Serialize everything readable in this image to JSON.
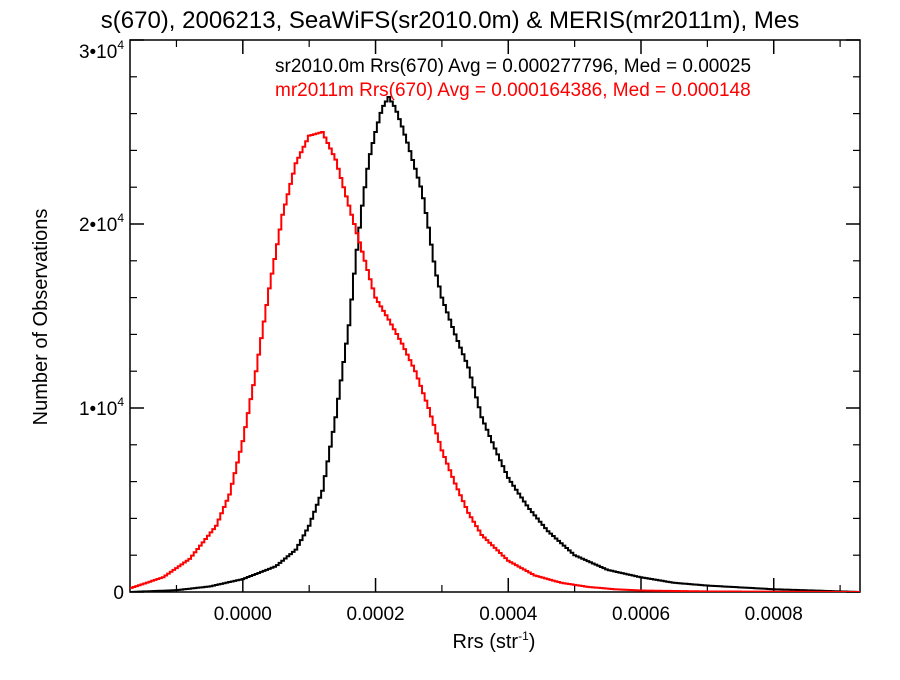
{
  "chart_data": {
    "type": "line",
    "title": "s(670), 2006213, SeaWiFS(sr2010.0m) & MERIS(mr2011m), Mes",
    "xlabel": "Rrs (str",
    "xlabel_sup": "-1",
    "xlabel_end": ")",
    "ylabel": "Number of Observations",
    "xlim": [
      -0.00017,
      0.00093
    ],
    "ylim": [
      0,
      30000
    ],
    "x_ticks": [
      {
        "value": 0.0,
        "label": "0.0000"
      },
      {
        "value": 0.0002,
        "label": "0.0002"
      },
      {
        "value": 0.0004,
        "label": "0.0004"
      },
      {
        "value": 0.0006,
        "label": "0.0006"
      },
      {
        "value": 0.0008,
        "label": "0.0008"
      }
    ],
    "y_ticks": [
      {
        "value": 0,
        "label": "0",
        "sup": ""
      },
      {
        "value": 10000,
        "label": "1•10",
        "sup": "4"
      },
      {
        "value": 20000,
        "label": "2•10",
        "sup": "4"
      },
      {
        "value": 30000,
        "label": "3•10",
        "sup": "4"
      }
    ],
    "annotations": [
      {
        "text": "sr2010.0m Rrs(670) Avg = 0.000277796, Med = 0.00025",
        "color": "#000000"
      },
      {
        "text": "mr2011m Rrs(670) Avg = 0.000164386, Med = 0.000148",
        "color": "#ff0000"
      }
    ],
    "series": [
      {
        "color": "#000000",
        "x": [
          -0.00017,
          -0.0001,
          -5e-05,
          0.0,
          5e-05,
          8e-05,
          0.0001,
          0.00012,
          0.00014,
          0.00016,
          0.00017,
          0.00018,
          0.00019,
          0.0002,
          0.00021,
          0.00022,
          0.00023,
          0.00024,
          0.00025,
          0.00026,
          0.00027,
          0.00028,
          0.00029,
          0.0003,
          0.00032,
          0.00034,
          0.00036,
          0.00038,
          0.0004,
          0.00043,
          0.00046,
          0.0005,
          0.00055,
          0.0006,
          0.00065,
          0.0007,
          0.0008,
          0.00093
        ],
        "y": [
          0,
          100,
          300,
          700,
          1400,
          2300,
          3600,
          5500,
          9500,
          14500,
          18000,
          21000,
          23500,
          25000,
          26300,
          26900,
          26300,
          25300,
          24200,
          23000,
          21800,
          19800,
          17500,
          16000,
          14000,
          12200,
          9500,
          7800,
          6200,
          4600,
          3300,
          2000,
          1200,
          800,
          500,
          350,
          150,
          0
        ]
      },
      {
        "color": "#ff0000",
        "x": [
          -0.00017,
          -0.00012,
          -8e-05,
          -4e-05,
          -2e-05,
          0.0,
          2e-05,
          4e-05,
          6e-05,
          8e-05,
          0.0001,
          0.00012,
          0.00014,
          0.00016,
          0.00018,
          0.0002,
          0.00022,
          0.00024,
          0.00026,
          0.00028,
          0.0003,
          0.00032,
          0.00034,
          0.00036,
          0.0004,
          0.00044,
          0.00048,
          0.00052,
          0.00056,
          0.0006,
          0.0007,
          0.00093
        ],
        "y": [
          200,
          800,
          1800,
          3600,
          5300,
          8200,
          12000,
          16500,
          20500,
          23300,
          24800,
          25000,
          23500,
          21000,
          18500,
          16000,
          14800,
          13500,
          12000,
          10000,
          7700,
          5900,
          4300,
          3100,
          1700,
          900,
          500,
          280,
          150,
          80,
          30,
          0
        ]
      }
    ]
  }
}
